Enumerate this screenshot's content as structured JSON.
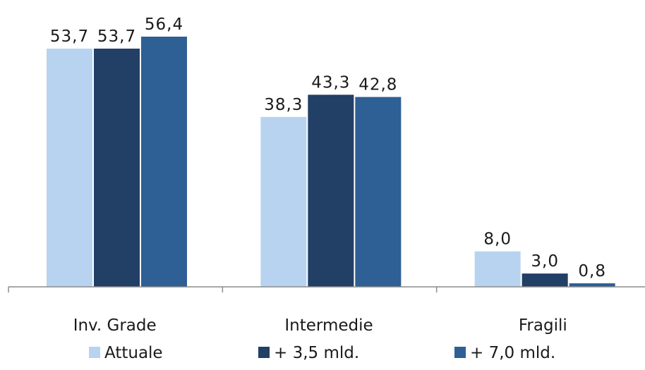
{
  "chart_data": {
    "type": "bar",
    "categories": [
      "Inv. Grade",
      "Intermedie",
      "Fragili"
    ],
    "series": [
      {
        "name": "Attuale",
        "values": [
          53.7,
          38.3,
          8.0
        ],
        "labels": [
          "53,7",
          "38,3",
          "8,0"
        ],
        "color": "#b7d3ef"
      },
      {
        "name": "+ 3,5 mld.",
        "values": [
          53.7,
          43.3,
          3.0
        ],
        "labels": [
          "53,7",
          "43,3",
          "3,0"
        ],
        "color": "#223f66"
      },
      {
        "name": "+ 7,0 mld.",
        "values": [
          56.4,
          42.8,
          0.8
        ],
        "labels": [
          "56,4",
          "42,8",
          "0,8"
        ],
        "color": "#2e5f95"
      }
    ],
    "ylim": [
      0,
      60
    ],
    "grid": false,
    "legend_position": "bottom",
    "axis_color": "#8c8c8c"
  }
}
